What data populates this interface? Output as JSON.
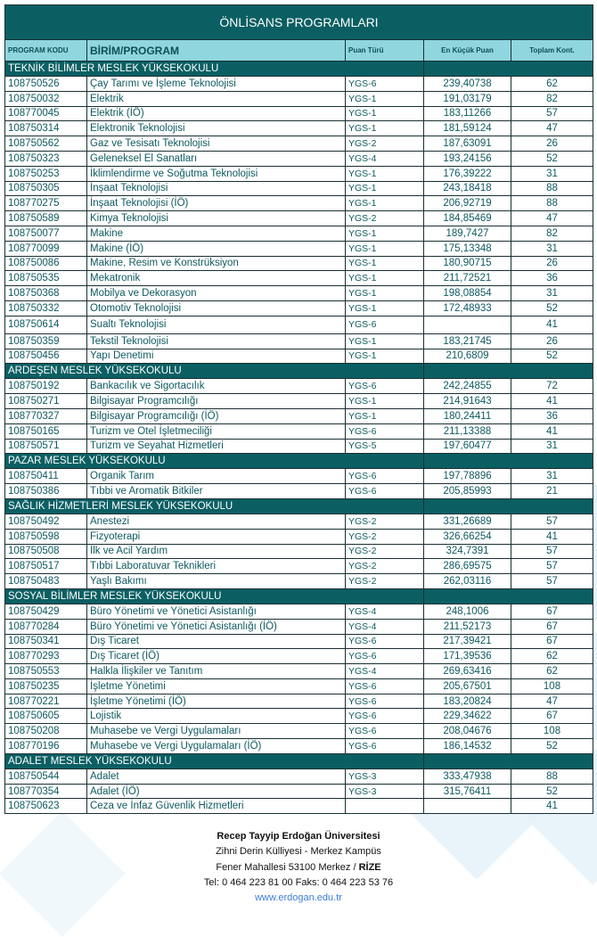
{
  "title": "ÖNLİSANS PROGRAMLARI",
  "headers": {
    "code": "PROGRAM KODU",
    "program": "BİRİM/PROGRAM",
    "type": "Puan Türü",
    "min_score": "En Küçük Puan",
    "total": "Toplam Kont."
  },
  "sections": [
    {
      "name": "TEKNİK BİLİMLER MESLEK YÜKSEKOKULU",
      "rows": [
        [
          "108750526",
          "Çay Tarımı ve İşleme Teknolojisi",
          "YGS-6",
          "239,40738",
          "62"
        ],
        [
          "108750032",
          "Elektrik",
          "YGS-1",
          "191,03179",
          "82"
        ],
        [
          "108770045",
          "Elektrik (İÖ)",
          "YGS-1",
          "183,11266",
          "57"
        ],
        [
          "108750314",
          "Elektronik Teknolojisi",
          "YGS-1",
          "181,59124",
          "47"
        ],
        [
          "108750562",
          "Gaz ve Tesisatı Teknolojisi",
          "YGS-2",
          "187,63091",
          "26"
        ],
        [
          "108750323",
          "Geleneksel El Sanatları",
          "YGS-4",
          "193,24156",
          "52"
        ],
        [
          "108750253",
          "İklimlendirme ve Soğutma Teknolojisi",
          "YGS-1",
          "176,39222",
          "31"
        ],
        [
          "108750305",
          "İnşaat Teknolojisi",
          "YGS-1",
          "243,18418",
          "88"
        ],
        [
          "108770275",
          "İnşaat Teknolojisi (İÖ)",
          "YGS-1",
          "206,92719",
          "88"
        ],
        [
          "108750589",
          "Kimya Teknolojisi",
          "YGS-2",
          "184,85469",
          "47"
        ],
        [
          "108750077",
          "Makine",
          "YGS-1",
          "189,7427",
          "82"
        ],
        [
          "108770099",
          "Makine (İÖ)",
          "YGS-1",
          "175,13348",
          "31"
        ],
        [
          "108750086",
          "Makine, Resim ve Konstrüksiyon",
          "YGS-1",
          "180,90715",
          "26"
        ],
        [
          "108750535",
          "Mekatronik",
          "YGS-1",
          "211,72521",
          "36"
        ],
        [
          "108750368",
          "Mobilya ve Dekorasyon",
          "YGS-1",
          "198,08854",
          "31"
        ],
        [
          "108750332",
          "Otomotiv Teknolojisi",
          "YGS-1",
          "172,48933",
          "52"
        ],
        [
          "108750614",
          "Sualtı Teknolojisi",
          "YGS-6",
          "",
          "41"
        ],
        [
          "108750359",
          "Tekstil Teknolojisi",
          "YGS-1",
          "183,21745",
          "26"
        ],
        [
          "108750456",
          "Yapı Denetimi",
          "YGS-1",
          "210,6809",
          "52"
        ]
      ]
    },
    {
      "name": "ARDEŞEN MESLEK YÜKSEKOKULU",
      "rows": [
        [
          "108750192",
          "Bankacılık ve Sigortacılık",
          "YGS-6",
          "242,24855",
          "72"
        ],
        [
          "108750271",
          "Bilgisayar Programcılığı",
          "YGS-1",
          "214,91643",
          "41"
        ],
        [
          "108770327",
          "Bilgisayar Programcılığı (İÖ)",
          "YGS-1",
          "180,24411",
          "36"
        ],
        [
          "108750165",
          "Turizm ve Otel İşletmeciliği",
          "YGS-6",
          "211,13388",
          "41"
        ],
        [
          "108750571",
          "Turizm ve Seyahat Hizmetleri",
          "YGS-5",
          "197,60477",
          "31"
        ]
      ]
    },
    {
      "name": "PAZAR MESLEK YÜKSEKOKULU",
      "rows": [
        [
          "108750411",
          "Organik Tarım",
          "YGS-6",
          "197,78896",
          "31"
        ],
        [
          "108750386",
          "Tıbbi ve Aromatik Bitkiler",
          "YGS-6",
          "205,85993",
          "21"
        ]
      ]
    },
    {
      "name": "SAĞLIK HİZMETLERİ MESLEK YÜKSEKOKULU",
      "rows": [
        [
          "108750492",
          "Anestezi",
          "YGS-2",
          "331,26689",
          "57"
        ],
        [
          "108750598",
          "Fizyoterapi",
          "YGS-2",
          "326,66254",
          "41"
        ],
        [
          "108750508",
          "İlk ve Acil Yardım",
          "YGS-2",
          "324,7391",
          "57"
        ],
        [
          "108750517",
          "Tıbbi Laboratuvar Teknikleri",
          "YGS-2",
          "286,69575",
          "57"
        ],
        [
          "108750483",
          "Yaşlı Bakımı",
          "YGS-2",
          "262,03116",
          "57"
        ]
      ]
    },
    {
      "name": "SOSYAL BİLİMLER MESLEK YÜKSEKOKULU",
      "rows": [
        [
          "108750429",
          "Büro Yönetimi ve Yönetici Asistanlığı",
          "YGS-4",
          "248,1006",
          "67"
        ],
        [
          "108770284",
          "Büro Yönetimi ve Yönetici Asistanlığı (İÖ)",
          "YGS-4",
          "211,52173",
          "67"
        ],
        [
          "108750341",
          "Dış Ticaret",
          "YGS-6",
          "217,39421",
          "67"
        ],
        [
          "108770293",
          "Dış Ticaret (İÖ)",
          "YGS-6",
          "171,39536",
          "62"
        ],
        [
          "108750553",
          "Halkla İlişkiler ve Tanıtım",
          "YGS-4",
          "269,63416",
          "62"
        ],
        [
          "108750235",
          "İşletme Yönetimi",
          "YGS-6",
          "205,67501",
          "108"
        ],
        [
          "108770221",
          "İşletme Yönetimi (İÖ)",
          "YGS-6",
          "183,20824",
          "47"
        ],
        [
          "108750605",
          "Lojistik",
          "YGS-6",
          "229,34622",
          "67"
        ],
        [
          "108750208",
          "Muhasebe ve Vergi Uygulamaları",
          "YGS-6",
          "208,04676",
          "108"
        ],
        [
          "108770196",
          "Muhasebe ve Vergi Uygulamaları (İÖ)",
          "YGS-6",
          "186,14532",
          "52"
        ]
      ]
    },
    {
      "name": "ADALET MESLEK YÜKSEKOKULU",
      "rows": [
        [
          "108750544",
          "Adalet",
          "YGS-3",
          "333,47938",
          "88"
        ],
        [
          "108770354",
          "Adalet (İÖ)",
          "YGS-3",
          "315,76411",
          "52"
        ],
        [
          "108750623",
          "Ceza ve İnfaz Güvenlik Hizmetleri",
          "",
          "",
          "41"
        ]
      ]
    }
  ],
  "footer": {
    "university": "Recep Tayyip Erdoğan  Üniversitesi",
    "campus": "Zihni Derin Külliyesi - Merkez Kampüs",
    "address": "Fener Mahallesi 53100 Merkez / ",
    "city": "RİZE",
    "phone": "Tel: 0 464 223 81 00   Faks: 0 464 223 53 76",
    "web": "www.erdogan.edu.tr"
  },
  "colors": {
    "title_bg": "#0b5f63",
    "header_bg": "#8fd6de",
    "text": "#0e5a60"
  }
}
